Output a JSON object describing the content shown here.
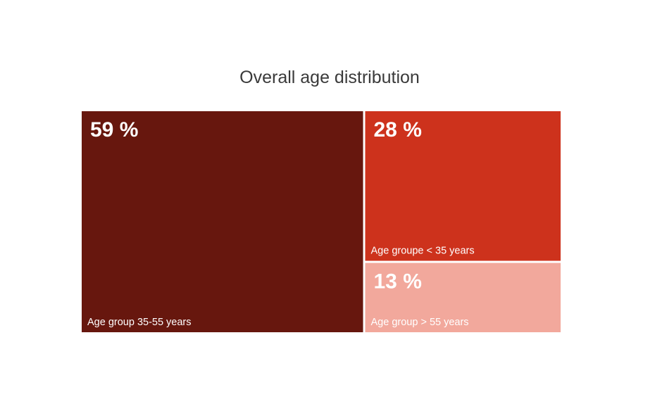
{
  "chart_data": {
    "type": "treemap",
    "title": "Overall age distribution",
    "items": [
      {
        "label": "Age group 35-55 years",
        "value": 59,
        "value_label": "59 %",
        "color": "#67170e"
      },
      {
        "label": "Age groupe < 35 years",
        "value": 28,
        "value_label": "28 %",
        "color": "#cd321c"
      },
      {
        "label": "Age group > 55 years",
        "value": 13,
        "value_label": "13 %",
        "color": "#f2a89c"
      }
    ]
  }
}
